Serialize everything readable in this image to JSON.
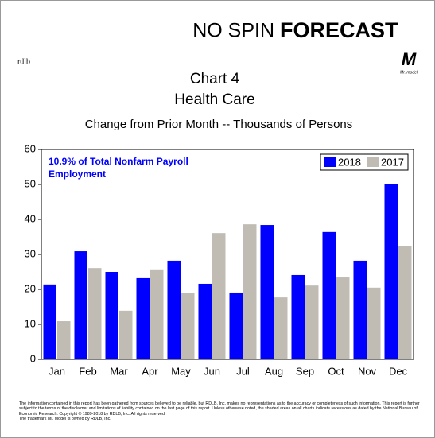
{
  "brand": {
    "left": "NO SPIN",
    "right": "FORECAST",
    "logo_left": "rdlb",
    "logo_right": "M",
    "logo_right_caption": "Mr. model"
  },
  "chart_data": {
    "type": "bar",
    "title": "Chart 4",
    "subtitle": "Health Care",
    "description": "Change from Prior Month -- Thousands of Persons",
    "annotation": [
      "10.9% of Total Nonfarm Payroll",
      "Employment"
    ],
    "categories": [
      "Jan",
      "Feb",
      "Mar",
      "Apr",
      "May",
      "Jun",
      "Jul",
      "Aug",
      "Sep",
      "Oct",
      "Nov",
      "Dec"
    ],
    "series": [
      {
        "name": "2018",
        "color": "#0000ff",
        "values": [
          21.4,
          30.9,
          25,
          23.2,
          28.2,
          21.6,
          19.1,
          38.4,
          24.1,
          36.4,
          28.2,
          50.2
        ]
      },
      {
        "name": "2017",
        "color": "#c0bcb4",
        "values": [
          10.9,
          26.1,
          13.9,
          25.5,
          18.9,
          36.1,
          38.6,
          17.7,
          21.1,
          23.4,
          20.5,
          32.3
        ]
      }
    ],
    "ylim": [
      0,
      60
    ],
    "yticks": [
      0,
      10,
      20,
      30,
      40,
      50,
      60
    ],
    "grid": false,
    "legend": "top-right"
  },
  "footer": [
    "The information contained in this report has been gathered from sources believed to be reliable, but RDLB, Inc. makes no representations as to the accuracy or completeness of such information. This report is further subject to the terms of the disclaimer and limitations of liability contained on the last page of this report. Unless otherwise noted, the shaded areas on all charts indicate recessions as dated by the National Bureau of Economic Research. Copyright © 1989-2018 by RDLB, Inc. All rights reserved.",
    "The trademark Mr. Model is owned by RDLB, Inc."
  ]
}
